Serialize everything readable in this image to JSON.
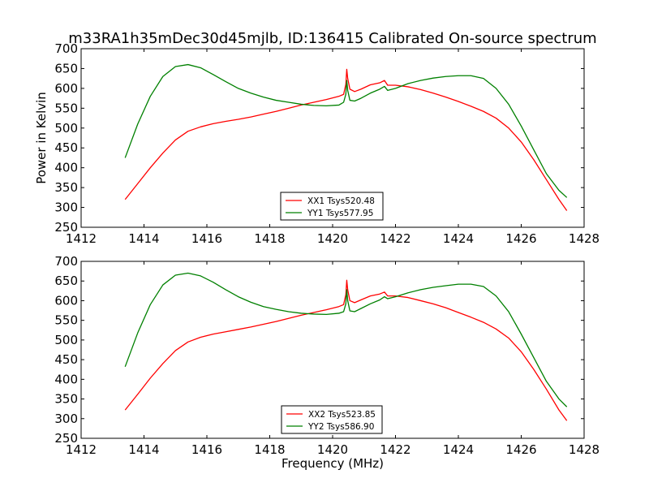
{
  "figure": {
    "title": "m33RA1h35mDec30d45mjlb, ID:136415 Calibrated On-source spectrum",
    "ylabel": "Power in Kelvin",
    "xlabel": "Frequency (MHz)"
  },
  "colors": {
    "red": "#ff0000",
    "green": "#008000"
  },
  "chart_data": [
    {
      "type": "line",
      "xlim": [
        1412,
        1428
      ],
      "ylim": [
        250,
        700
      ],
      "xticks": [
        1412,
        1414,
        1416,
        1418,
        1420,
        1422,
        1424,
        1426,
        1428
      ],
      "yticks": [
        250,
        300,
        350,
        400,
        450,
        500,
        550,
        600,
        650,
        700
      ],
      "legend_position": "lower-center",
      "series": [
        {
          "name": "XX1 Tsys520.48",
          "color": "red",
          "x": [
            1413.4,
            1413.8,
            1414.2,
            1414.6,
            1415.0,
            1415.4,
            1415.8,
            1416.2,
            1416.6,
            1417.0,
            1417.4,
            1417.8,
            1418.2,
            1418.6,
            1419.0,
            1419.4,
            1419.8,
            1420.2,
            1420.35,
            1420.42,
            1420.45,
            1420.48,
            1420.55,
            1420.7,
            1420.9,
            1421.2,
            1421.5,
            1421.65,
            1421.75,
            1422.0,
            1422.4,
            1422.8,
            1423.2,
            1423.6,
            1424.0,
            1424.4,
            1424.8,
            1425.2,
            1425.6,
            1426.0,
            1426.4,
            1426.8,
            1427.2,
            1427.45
          ],
          "y": [
            320,
            360,
            400,
            437,
            470,
            492,
            503,
            511,
            517,
            522,
            528,
            535,
            542,
            550,
            558,
            565,
            572,
            580,
            585,
            610,
            648,
            625,
            598,
            592,
            598,
            609,
            614,
            620,
            608,
            608,
            604,
            597,
            588,
            578,
            567,
            555,
            542,
            525,
            500,
            465,
            420,
            370,
            320,
            292
          ]
        },
        {
          "name": "YY1 Tsys577.95",
          "color": "green",
          "x": [
            1413.4,
            1413.8,
            1414.2,
            1414.6,
            1415.0,
            1415.4,
            1415.8,
            1416.2,
            1416.6,
            1417.0,
            1417.4,
            1417.8,
            1418.2,
            1418.6,
            1419.0,
            1419.4,
            1419.8,
            1420.2,
            1420.35,
            1420.42,
            1420.45,
            1420.48,
            1420.55,
            1420.7,
            1420.9,
            1421.2,
            1421.5,
            1421.65,
            1421.75,
            1422.0,
            1422.4,
            1422.8,
            1423.2,
            1423.6,
            1424.0,
            1424.4,
            1424.8,
            1425.2,
            1425.6,
            1426.0,
            1426.4,
            1426.8,
            1427.2,
            1427.45
          ],
          "y": [
            425,
            510,
            580,
            630,
            655,
            660,
            652,
            635,
            617,
            600,
            588,
            578,
            570,
            565,
            560,
            557,
            556,
            558,
            565,
            585,
            620,
            595,
            570,
            568,
            575,
            588,
            598,
            605,
            595,
            600,
            612,
            620,
            626,
            630,
            632,
            632,
            625,
            600,
            560,
            505,
            445,
            385,
            343,
            325
          ]
        }
      ]
    },
    {
      "type": "line",
      "xlim": [
        1412,
        1428
      ],
      "ylim": [
        250,
        700
      ],
      "xticks": [
        1412,
        1414,
        1416,
        1418,
        1420,
        1422,
        1424,
        1426,
        1428
      ],
      "yticks": [
        250,
        300,
        350,
        400,
        450,
        500,
        550,
        600,
        650,
        700
      ],
      "legend_position": "lower-center",
      "series": [
        {
          "name": "XX2 Tsys523.85",
          "color": "red",
          "x": [
            1413.4,
            1413.8,
            1414.2,
            1414.6,
            1415.0,
            1415.4,
            1415.8,
            1416.2,
            1416.6,
            1417.0,
            1417.4,
            1417.8,
            1418.2,
            1418.6,
            1419.0,
            1419.4,
            1419.8,
            1420.2,
            1420.35,
            1420.42,
            1420.45,
            1420.48,
            1420.55,
            1420.7,
            1420.9,
            1421.2,
            1421.5,
            1421.65,
            1421.75,
            1422.0,
            1422.4,
            1422.8,
            1423.2,
            1423.6,
            1424.0,
            1424.4,
            1424.8,
            1425.2,
            1425.6,
            1426.0,
            1426.4,
            1426.8,
            1427.2,
            1427.45
          ],
          "y": [
            322,
            362,
            403,
            440,
            473,
            495,
            507,
            515,
            521,
            527,
            533,
            540,
            547,
            555,
            563,
            570,
            577,
            585,
            590,
            615,
            652,
            628,
            600,
            595,
            602,
            612,
            617,
            622,
            612,
            612,
            608,
            600,
            592,
            582,
            570,
            558,
            545,
            528,
            505,
            470,
            425,
            375,
            322,
            295
          ]
        },
        {
          "name": "YY2 Tsys586.90",
          "color": "green",
          "x": [
            1413.4,
            1413.8,
            1414.2,
            1414.6,
            1415.0,
            1415.4,
            1415.8,
            1416.2,
            1416.6,
            1417.0,
            1417.4,
            1417.8,
            1418.2,
            1418.6,
            1419.0,
            1419.4,
            1419.8,
            1420.2,
            1420.35,
            1420.42,
            1420.45,
            1420.48,
            1420.55,
            1420.7,
            1420.9,
            1421.2,
            1421.5,
            1421.65,
            1421.75,
            1422.0,
            1422.4,
            1422.8,
            1423.2,
            1423.6,
            1424.0,
            1424.4,
            1424.8,
            1425.2,
            1425.6,
            1426.0,
            1426.4,
            1426.8,
            1427.2,
            1427.45
          ],
          "y": [
            432,
            518,
            590,
            640,
            665,
            670,
            663,
            647,
            628,
            610,
            596,
            585,
            578,
            572,
            568,
            566,
            565,
            568,
            572,
            592,
            628,
            600,
            574,
            572,
            580,
            592,
            602,
            610,
            605,
            610,
            620,
            628,
            634,
            638,
            642,
            642,
            636,
            612,
            572,
            515,
            455,
            395,
            350,
            330
          ]
        }
      ]
    }
  ]
}
